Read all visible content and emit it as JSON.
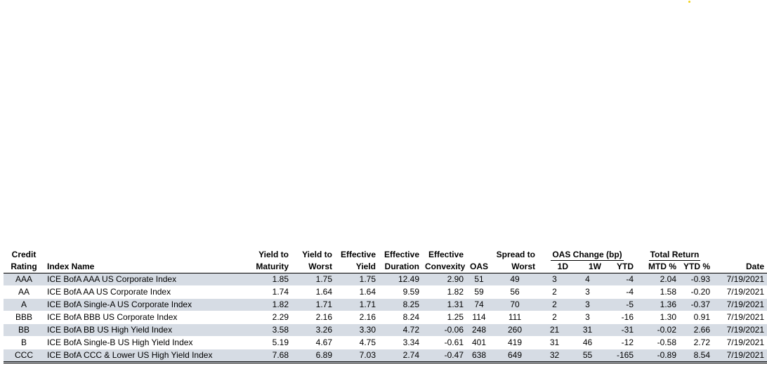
{
  "accent_colors": {
    "row_shade": "#d6dce4",
    "header_text": "#000000",
    "dot": "#f2d21a"
  },
  "headers": {
    "rating_top": "Credit",
    "rating_bottom": "Rating",
    "index_name": "Index Name",
    "ytm_top": "Yield to",
    "ytm_bottom": "Maturity",
    "ytw_top": "Yield to",
    "ytw_bottom": "Worst",
    "ey_top": "Effective",
    "ey_bottom": "Yield",
    "ed_top": "Effective",
    "ed_bottom": "Duration",
    "ec_top": "Effective",
    "ec_bottom": "Convexity",
    "oas": "OAS",
    "stw_top": "Spread to",
    "stw_bottom": "Worst",
    "oas_change_group": "OAS Change (bp)",
    "oas_1d": "1D",
    "oas_1w": "1W",
    "oas_ytd": "YTD",
    "total_return_group": "Total Return",
    "mtd": "MTD %",
    "ytd_pct": "YTD %",
    "date": "Date"
  },
  "rows": [
    {
      "rating": "AAA",
      "name": "ICE BofA AAA US Corporate Index",
      "ytm": "1.85",
      "ytw": "1.75",
      "ey": "1.75",
      "ed": "12.49",
      "ec": "2.90",
      "oas": "51",
      "stw": "49",
      "d1": "3",
      "w1": "4",
      "ytd": "-4",
      "mtd": "2.04",
      "ytdp": "-0.93",
      "date": "7/19/2021"
    },
    {
      "rating": "AA",
      "name": "ICE BofA AA US Corporate Index",
      "ytm": "1.74",
      "ytw": "1.64",
      "ey": "1.64",
      "ed": "9.59",
      "ec": "1.82",
      "oas": "59",
      "stw": "56",
      "d1": "2",
      "w1": "3",
      "ytd": "-4",
      "mtd": "1.58",
      "ytdp": "-0.20",
      "date": "7/19/2021"
    },
    {
      "rating": "A",
      "name": "ICE BofA Single-A US Corporate Index",
      "ytm": "1.82",
      "ytw": "1.71",
      "ey": "1.71",
      "ed": "8.25",
      "ec": "1.31",
      "oas": "74",
      "stw": "70",
      "d1": "2",
      "w1": "3",
      "ytd": "-5",
      "mtd": "1.36",
      "ytdp": "-0.37",
      "date": "7/19/2021"
    },
    {
      "rating": "BBB",
      "name": "ICE BofA BBB US Corporate Index",
      "ytm": "2.29",
      "ytw": "2.16",
      "ey": "2.16",
      "ed": "8.24",
      "ec": "1.25",
      "oas": "114",
      "stw": "111",
      "d1": "2",
      "w1": "3",
      "ytd": "-16",
      "mtd": "1.30",
      "ytdp": "0.91",
      "date": "7/19/2021"
    },
    {
      "rating": "BB",
      "name": "ICE BofA BB US High Yield Index",
      "ytm": "3.58",
      "ytw": "3.26",
      "ey": "3.30",
      "ed": "4.72",
      "ec": "-0.06",
      "oas": "248",
      "stw": "260",
      "d1": "21",
      "w1": "31",
      "ytd": "-31",
      "mtd": "-0.02",
      "ytdp": "2.66",
      "date": "7/19/2021"
    },
    {
      "rating": "B",
      "name": "ICE BofA Single-B US High Yield Index",
      "ytm": "5.19",
      "ytw": "4.67",
      "ey": "4.75",
      "ed": "3.34",
      "ec": "-0.61",
      "oas": "401",
      "stw": "419",
      "d1": "31",
      "w1": "46",
      "ytd": "-12",
      "mtd": "-0.58",
      "ytdp": "2.72",
      "date": "7/19/2021"
    },
    {
      "rating": "CCC",
      "name": "ICE BofA CCC & Lower US High Yield Index",
      "ytm": "7.68",
      "ytw": "6.89",
      "ey": "7.03",
      "ed": "2.74",
      "ec": "-0.47",
      "oas": "638",
      "stw": "649",
      "d1": "32",
      "w1": "55",
      "ytd": "-165",
      "mtd": "-0.89",
      "ytdp": "8.54",
      "date": "7/19/2021"
    }
  ]
}
